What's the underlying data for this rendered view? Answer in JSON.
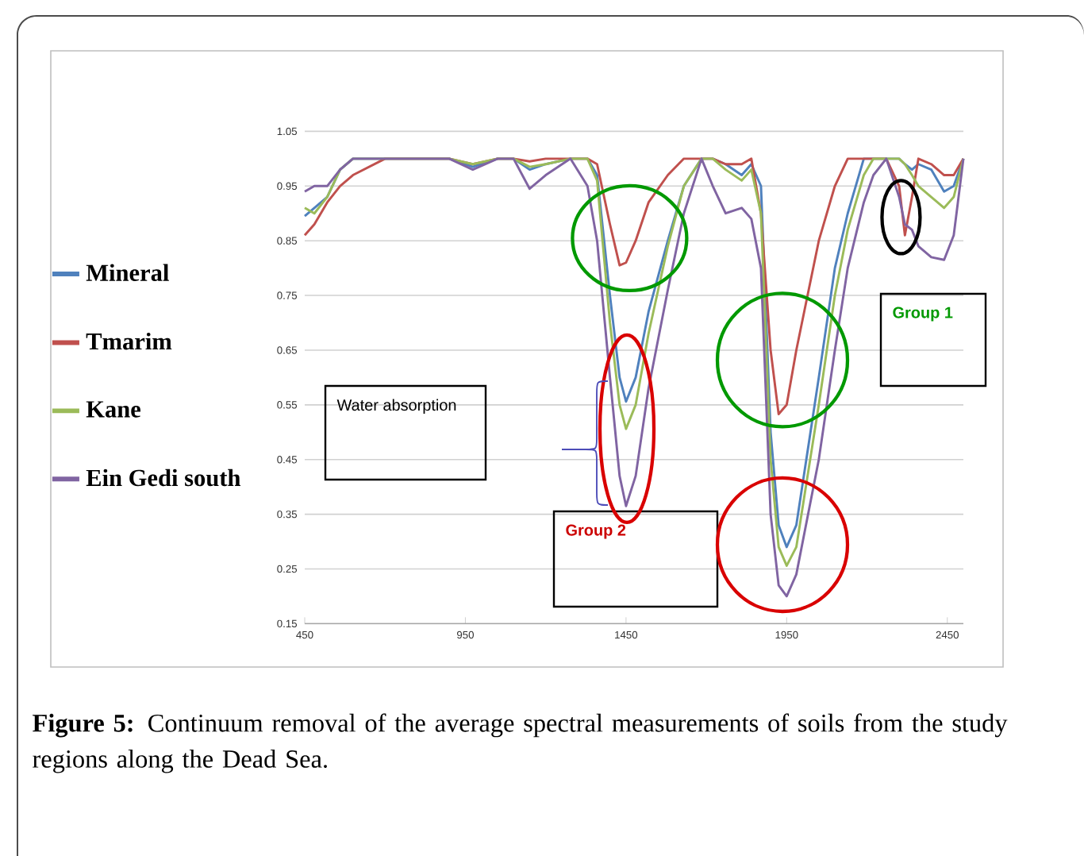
{
  "chart_data": {
    "type": "line",
    "x": [
      450,
      480,
      520,
      560,
      600,
      700,
      900,
      973,
      1050,
      1100,
      1150,
      1200,
      1277,
      1330,
      1360,
      1400,
      1430,
      1450,
      1480,
      1520,
      1580,
      1630,
      1685,
      1720,
      1760,
      1810,
      1840,
      1870,
      1900,
      1925,
      1950,
      1980,
      2050,
      2100,
      2140,
      2190,
      2220,
      2260,
      2300,
      2318,
      2340,
      2360,
      2400,
      2440,
      2470,
      2500
    ],
    "series": [
      {
        "name": "Mineral",
        "color": "#4f81bd",
        "values": [
          0.895,
          0.91,
          0.93,
          0.98,
          1.0,
          1.0,
          1.0,
          0.985,
          1.0,
          1.0,
          0.98,
          0.99,
          1.0,
          1.0,
          0.97,
          0.75,
          0.6,
          0.556,
          0.6,
          0.72,
          0.85,
          0.95,
          1.0,
          1.0,
          0.99,
          0.97,
          0.99,
          0.95,
          0.5,
          0.33,
          0.29,
          0.33,
          0.6,
          0.8,
          0.9,
          1.0,
          1.0,
          1.0,
          1.0,
          0.99,
          0.98,
          0.99,
          0.98,
          0.94,
          0.95,
          1.0
        ]
      },
      {
        "name": "Tmarim",
        "color": "#c0504d",
        "values": [
          0.86,
          0.88,
          0.92,
          0.95,
          0.97,
          1.0,
          1.0,
          0.99,
          1.0,
          1.0,
          0.995,
          1.0,
          1.0,
          1.0,
          0.99,
          0.88,
          0.805,
          0.81,
          0.85,
          0.92,
          0.97,
          1.0,
          1.0,
          1.0,
          0.99,
          0.99,
          1.0,
          0.9,
          0.65,
          0.533,
          0.55,
          0.65,
          0.85,
          0.95,
          1.0,
          1.0,
          1.0,
          1.0,
          0.95,
          0.86,
          0.93,
          1.0,
          0.99,
          0.97,
          0.97,
          1.0
        ]
      },
      {
        "name": "Kane",
        "color": "#9bbb59",
        "values": [
          0.91,
          0.9,
          0.93,
          0.98,
          1.0,
          1.0,
          1.0,
          0.99,
          1.0,
          1.0,
          0.985,
          0.99,
          1.0,
          1.0,
          0.96,
          0.7,
          0.55,
          0.506,
          0.55,
          0.68,
          0.84,
          0.95,
          1.0,
          1.0,
          0.98,
          0.96,
          0.98,
          0.9,
          0.45,
          0.29,
          0.256,
          0.29,
          0.55,
          0.75,
          0.87,
          0.97,
          1.0,
          1.0,
          1.0,
          0.99,
          0.97,
          0.95,
          0.93,
          0.91,
          0.93,
          1.0
        ]
      },
      {
        "name": "Ein Gedi south",
        "color": "#8064a2",
        "values": [
          0.94,
          0.95,
          0.95,
          0.98,
          1.0,
          1.0,
          1.0,
          0.98,
          1.0,
          1.0,
          0.945,
          0.97,
          1.0,
          0.95,
          0.85,
          0.6,
          0.42,
          0.365,
          0.42,
          0.58,
          0.76,
          0.9,
          1.0,
          0.95,
          0.9,
          0.91,
          0.89,
          0.8,
          0.35,
          0.22,
          0.2,
          0.24,
          0.45,
          0.65,
          0.8,
          0.92,
          0.97,
          1.0,
          0.93,
          0.88,
          0.87,
          0.84,
          0.82,
          0.815,
          0.86,
          1.0
        ]
      }
    ],
    "xlim": [
      450,
      2500
    ],
    "ylim": [
      0.15,
      1.05
    ],
    "xticks": [
      450,
      950,
      1450,
      1950,
      2450
    ],
    "yticks": [
      0.15,
      0.25,
      0.35,
      0.45,
      0.55,
      0.65,
      0.75,
      0.85,
      0.95,
      1.05
    ],
    "grid": "y",
    "legend": "left",
    "marker": "none",
    "line_style": "solid",
    "annotations": [
      "Water absorption",
      "Group 2",
      "Group 1",
      "**Figure 5:** Continuum removal of the average spectral measurements of soils from the study regions along the Dead Sea."
    ]
  }
}
